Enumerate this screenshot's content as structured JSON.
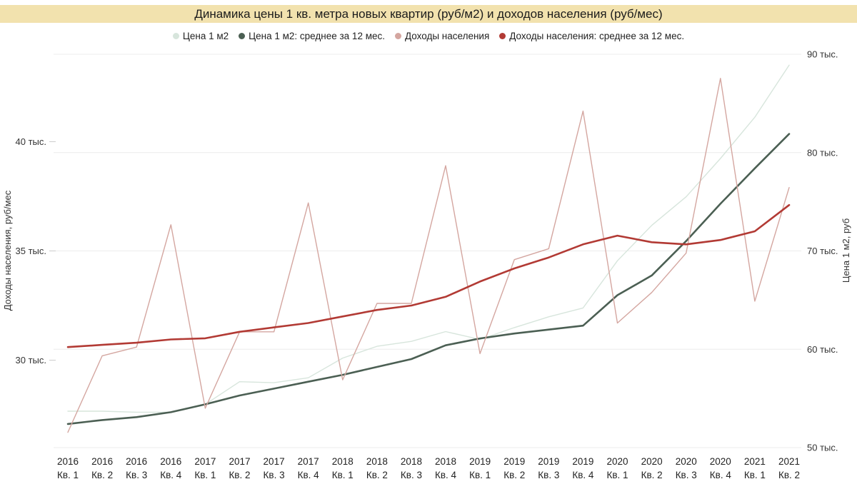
{
  "title": "Динамика цены 1 кв. метра новых квартир (руб/м2) и доходов населения (руб/мес)",
  "colors": {
    "title_bar_bg": "#f2e2ae",
    "grid_line": "#ececec",
    "left_tick_dash": "#cccccc",
    "price_m2": "#d7e5dc",
    "price_m2_avg12": "#4b5f53",
    "income": "#d4a6a0",
    "income_avg12": "#b23a34",
    "text": "#333333"
  },
  "chart_data": {
    "type": "line",
    "title": "Динамика цены 1 кв. метра новых квартир (руб/м2) и доходов населения (руб/мес)",
    "values_unit": "thousand rubles (тыс.)",
    "grid": "horizontal",
    "legend_position": "top",
    "categories": [
      {
        "year": "2016",
        "quarter": "Кв. 1"
      },
      {
        "year": "2016",
        "quarter": "Кв. 2"
      },
      {
        "year": "2016",
        "quarter": "Кв. 3"
      },
      {
        "year": "2016",
        "quarter": "Кв. 4"
      },
      {
        "year": "2017",
        "quarter": "Кв. 1"
      },
      {
        "year": "2017",
        "quarter": "Кв. 2"
      },
      {
        "year": "2017",
        "quarter": "Кв. 3"
      },
      {
        "year": "2017",
        "quarter": "Кв. 4"
      },
      {
        "year": "2018",
        "quarter": "Кв. 1"
      },
      {
        "year": "2018",
        "quarter": "Кв. 2"
      },
      {
        "year": "2018",
        "quarter": "Кв. 3"
      },
      {
        "year": "2018",
        "quarter": "Кв. 4"
      },
      {
        "year": "2019",
        "quarter": "Кв. 1"
      },
      {
        "year": "2019",
        "quarter": "Кв. 2"
      },
      {
        "year": "2019",
        "quarter": "Кв. 3"
      },
      {
        "year": "2019",
        "quarter": "Кв. 4"
      },
      {
        "year": "2020",
        "quarter": "Кв. 1"
      },
      {
        "year": "2020",
        "quarter": "Кв. 2"
      },
      {
        "year": "2020",
        "quarter": "Кв. 3"
      },
      {
        "year": "2020",
        "quarter": "Кв. 4"
      },
      {
        "year": "2021",
        "quarter": "Кв. 1"
      },
      {
        "year": "2021",
        "quarter": "Кв. 2"
      }
    ],
    "left_axis": {
      "title": "Доходы населения, руб/мес",
      "min": 26,
      "max": 44,
      "ticks": [
        {
          "value": 30,
          "label": "30 тыс."
        },
        {
          "value": 35,
          "label": "35 тыс."
        },
        {
          "value": 40,
          "label": "40 тыс."
        }
      ]
    },
    "right_axis": {
      "title": "Цена 1 м2, руб",
      "min": 50,
      "max": 90,
      "ticks": [
        {
          "value": 50,
          "label": "50 тыс."
        },
        {
          "value": 60,
          "label": "60 тыс."
        },
        {
          "value": 70,
          "label": "70 тыс."
        },
        {
          "value": 80,
          "label": "80 тыс."
        },
        {
          "value": 90,
          "label": "90 тыс."
        }
      ]
    },
    "series": [
      {
        "name": "Цена 1 м2",
        "axis": "right",
        "color": "#d7e5dc",
        "width": 1.4,
        "values": [
          53.7,
          53.7,
          53.6,
          53.6,
          54.4,
          56.7,
          56.6,
          57.1,
          59.1,
          60.3,
          60.8,
          61.8,
          61.0,
          62.2,
          63.3,
          64.2,
          69.0,
          72.6,
          75.5,
          79.4,
          83.6,
          88.9
        ]
      },
      {
        "name": "Цена 1 м2: среднее за 12 мес.",
        "axis": "right",
        "color": "#4b5f53",
        "width": 2.6,
        "values": [
          52.4,
          52.8,
          53.1,
          53.6,
          54.4,
          55.3,
          56.0,
          56.7,
          57.4,
          58.2,
          59.0,
          60.4,
          61.1,
          61.6,
          62.0,
          62.4,
          65.5,
          67.5,
          71.0,
          74.8,
          78.4,
          81.9
        ]
      },
      {
        "name": "Доходы населения",
        "axis": "left",
        "color": "#d4a6a0",
        "width": 1.4,
        "values": [
          26.7,
          30.2,
          30.6,
          36.2,
          27.8,
          31.3,
          31.3,
          37.2,
          29.1,
          32.6,
          32.6,
          38.9,
          30.3,
          34.6,
          35.1,
          41.4,
          31.7,
          33.1,
          34.9,
          42.9,
          32.7,
          37.9
        ]
      },
      {
        "name": "Доходы населения: среднее за 12 мес.",
        "axis": "left",
        "color": "#b23a34",
        "width": 2.6,
        "values": [
          30.6,
          30.7,
          30.8,
          30.95,
          31.0,
          31.3,
          31.5,
          31.7,
          32.0,
          32.3,
          32.5,
          32.9,
          33.6,
          34.2,
          34.7,
          35.3,
          35.7,
          35.4,
          35.3,
          35.5,
          35.9,
          37.1
        ]
      }
    ]
  }
}
